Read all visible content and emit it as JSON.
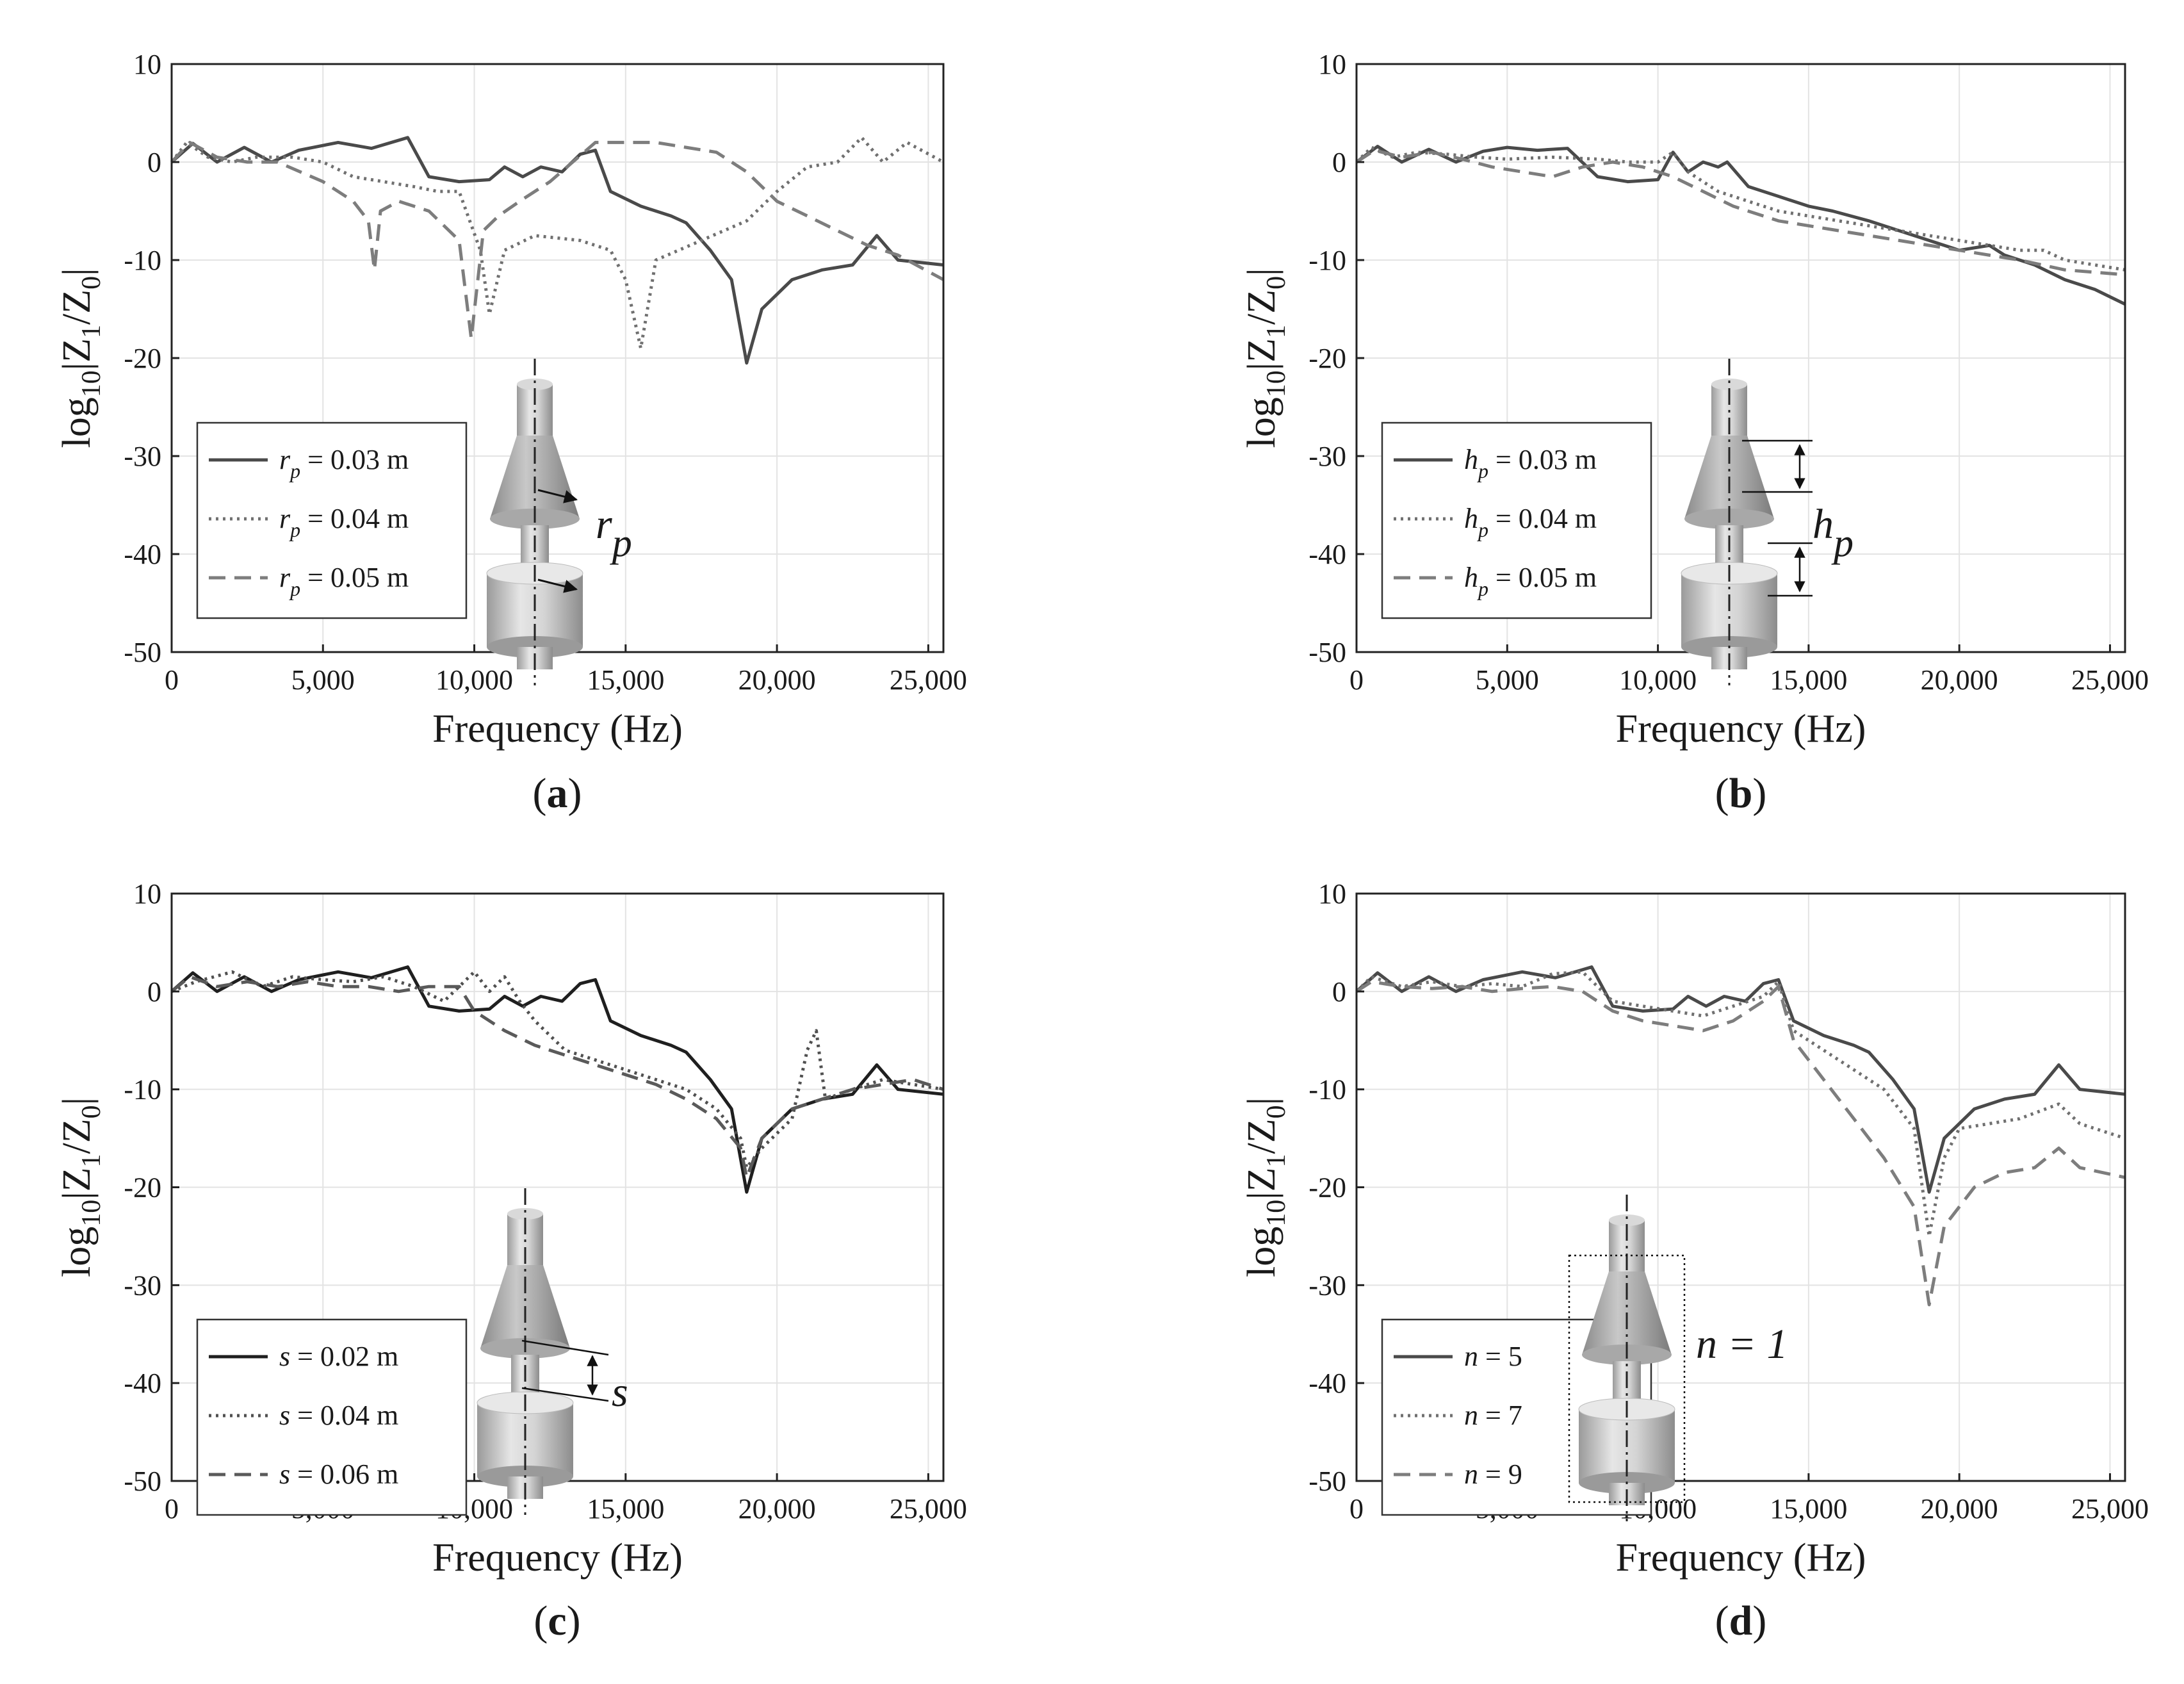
{
  "chart_data": [
    {
      "type": "line",
      "caption": "a",
      "xlabel": "Frequency (Hz)",
      "ylabel": "log10|Z1/Z0|",
      "xlim": [
        0,
        25500
      ],
      "ylim": [
        -50,
        10
      ],
      "xticks": [
        0,
        5000,
        10000,
        15000,
        20000,
        25000
      ],
      "xtick_labels": [
        "0",
        "5,000",
        "10,000",
        "15,000",
        "20,000",
        "25,000"
      ],
      "yticks": [
        10,
        0,
        -10,
        -20,
        -30,
        -40,
        -50
      ],
      "ytick_labels": [
        "10",
        "0",
        "-10",
        "-20",
        "-30",
        "-40",
        "-50"
      ],
      "grid": true,
      "legend_position": "bottom-left",
      "series": [
        {
          "name": "r_p = 0.03 m",
          "param": "r",
          "sub": "p",
          "value_text": " = 0.03 m",
          "style": "solid",
          "color": "#4a4a4a",
          "x": [
            0,
            700,
            1500,
            2400,
            3300,
            4200,
            5500,
            6600,
            7800,
            8500,
            9500,
            10500,
            11000,
            11600,
            12200,
            12900,
            13500,
            14000,
            14500,
            15500,
            16500,
            17000,
            17800,
            18500,
            19000,
            19500,
            20500,
            21500,
            22500,
            23300,
            24000,
            25500
          ],
          "y": [
            0,
            1.9,
            0,
            1.5,
            0,
            1.2,
            2.0,
            1.4,
            2.5,
            -1.5,
            -2,
            -1.8,
            -0.5,
            -1.5,
            -0.5,
            -1,
            0.8,
            1.2,
            -3,
            -4.5,
            -5.5,
            -6.2,
            -9,
            -12,
            -20.5,
            -15,
            -12,
            -11,
            -10.5,
            -7.5,
            -10,
            -10.5
          ]
        },
        {
          "name": "r_p = 0.04 m",
          "param": "r",
          "sub": "p",
          "value_text": " = 0.04 m",
          "style": "dotted",
          "color": "#707070",
          "x": [
            0,
            500,
            1200,
            2000,
            2800,
            4000,
            5000,
            6000,
            7000,
            8000,
            8800,
            9500,
            10200,
            10500,
            11000,
            12000,
            13500,
            14500,
            15000,
            15500,
            16000,
            17500,
            19000,
            20000,
            21000,
            22000,
            22800,
            23500,
            24300,
            25500
          ],
          "y": [
            0,
            2,
            0.5,
            0,
            0.5,
            0.5,
            0,
            -1.5,
            -2,
            -2.5,
            -3,
            -3,
            -9,
            -15.5,
            -9,
            -7.5,
            -8,
            -9,
            -12,
            -19,
            -10,
            -8,
            -6,
            -3,
            -0.5,
            0,
            2.5,
            0,
            2.0,
            0
          ]
        },
        {
          "name": "r_p = 0.05 m",
          "param": "r",
          "sub": "p",
          "value_text": " = 0.05 m",
          "style": "dashed",
          "color": "#7d7d7d",
          "x": [
            0,
            600,
            1500,
            2500,
            3500,
            5000,
            6000,
            6500,
            6700,
            6900,
            7500,
            8500,
            9500,
            9900,
            10300,
            10800,
            11500,
            12500,
            14000,
            15000,
            16000,
            17000,
            18000,
            19000,
            20000,
            21000,
            22000,
            23000,
            24000,
            25500
          ],
          "y": [
            0,
            2,
            0.5,
            0,
            0,
            -2,
            -4,
            -6,
            -11,
            -5,
            -4,
            -5,
            -8,
            -18,
            -7,
            -5.5,
            -4,
            -2,
            2,
            2,
            2,
            1.5,
            1.0,
            -1,
            -4,
            -5.5,
            -7,
            -8.5,
            -9.5,
            -12
          ]
        }
      ],
      "inset": {
        "label": "r",
        "label_sub": "p"
      }
    },
    {
      "type": "line",
      "caption": "b",
      "xlabel": "Frequency (Hz)",
      "ylabel": "log10|Z1/Z0|",
      "xlim": [
        0,
        25500
      ],
      "ylim": [
        -50,
        10
      ],
      "xticks": [
        0,
        5000,
        10000,
        15000,
        20000,
        25000
      ],
      "xtick_labels": [
        "0",
        "5,000",
        "10,000",
        "15,000",
        "20,000",
        "25,000"
      ],
      "yticks": [
        10,
        0,
        -10,
        -20,
        -30,
        -40,
        -50
      ],
      "ytick_labels": [
        "10",
        "0",
        "-10",
        "-20",
        "-30",
        "-40",
        "-50"
      ],
      "grid": true,
      "legend_position": "bottom-left",
      "series": [
        {
          "name": "h_p = 0.03 m",
          "param": "h",
          "sub": "p",
          "value_text": " = 0.03 m",
          "style": "solid",
          "color": "#4a4a4a",
          "x": [
            0,
            700,
            1500,
            2400,
            3300,
            4200,
            5000,
            6000,
            7000,
            8000,
            9000,
            10000,
            10500,
            11000,
            11500,
            12000,
            12300,
            13000,
            14000,
            15000,
            15800,
            17000,
            18000,
            19000,
            20000,
            21000,
            21500,
            22500,
            23500,
            24500,
            25500
          ],
          "y": [
            0,
            1.6,
            0,
            1.3,
            0,
            1.1,
            1.5,
            1.2,
            1.4,
            -1.5,
            -2,
            -1.8,
            1,
            -1,
            0,
            -0.5,
            0,
            -2.5,
            -3.5,
            -4.5,
            -5,
            -6,
            -7,
            -8,
            -9,
            -8.5,
            -9.5,
            -10.5,
            -12,
            -13,
            -14.5
          ]
        },
        {
          "name": "h_p = 0.04 m",
          "param": "h",
          "sub": "p",
          "value_text": " = 0.04 m",
          "style": "dotted",
          "color": "#707070",
          "x": [
            0,
            500,
            1200,
            2000,
            3000,
            4000,
            5000,
            6500,
            8000,
            9000,
            10000,
            10500,
            11000,
            12000,
            14000,
            16000,
            18000,
            20000,
            22000,
            22800,
            23500,
            25500
          ],
          "y": [
            0,
            1.5,
            0.5,
            1,
            0.8,
            0.5,
            0.3,
            0.5,
            0.3,
            0,
            0,
            1,
            -1,
            -3,
            -5,
            -6,
            -7,
            -8,
            -9,
            -9,
            -10,
            -11
          ]
        },
        {
          "name": "h_p = 0.05 m",
          "param": "h",
          "sub": "p",
          "value_text": " = 0.05 m",
          "style": "dashed",
          "color": "#7d7d7d",
          "x": [
            0,
            600,
            1500,
            2500,
            3500,
            4500,
            5500,
            6500,
            7500,
            8500,
            9500,
            10500,
            11500,
            12500,
            14000,
            16000,
            18000,
            20000,
            22000,
            23500,
            25500
          ],
          "y": [
            0,
            1.2,
            0.5,
            1,
            0.3,
            -0.5,
            -1,
            -1.5,
            -0.5,
            0,
            -0.5,
            -1.5,
            -3,
            -4.5,
            -6,
            -7,
            -8,
            -9,
            -10,
            -11,
            -11.5
          ]
        }
      ],
      "inset": {
        "label": "h",
        "label_sub": "p"
      }
    },
    {
      "type": "line",
      "caption": "c",
      "xlabel": "Frequency (Hz)",
      "ylabel": "log10|Z1/Z0|",
      "xlim": [
        0,
        25500
      ],
      "ylim": [
        -50,
        10
      ],
      "xticks": [
        0,
        5000,
        10000,
        15000,
        20000,
        25000
      ],
      "xtick_labels": [
        "0",
        "5,000",
        "10,000",
        "15,000",
        "20,000",
        "25,000"
      ],
      "yticks": [
        10,
        0,
        -10,
        -20,
        -30,
        -40,
        -50
      ],
      "ytick_labels": [
        "10",
        "0",
        "-10",
        "-20",
        "-30",
        "-40",
        "-50"
      ],
      "grid": true,
      "legend_position": "bottom-left",
      "series": [
        {
          "name": "s = 0.02 m",
          "param": "s",
          "sub": "",
          "value_text": " = 0.02 m",
          "style": "solid",
          "color": "#1f1f1f",
          "x": [
            0,
            700,
            1500,
            2400,
            3300,
            4200,
            5500,
            6600,
            7800,
            8500,
            9500,
            10500,
            11000,
            11600,
            12200,
            12900,
            13500,
            14000,
            14500,
            15500,
            16500,
            17000,
            17800,
            18500,
            19000,
            19500,
            20500,
            21500,
            22500,
            23300,
            24000,
            25500
          ],
          "y": [
            0,
            1.9,
            0,
            1.5,
            0,
            1.2,
            2.0,
            1.4,
            2.5,
            -1.5,
            -2,
            -1.8,
            -0.5,
            -1.5,
            -0.5,
            -1,
            0.8,
            1.2,
            -3,
            -4.5,
            -5.5,
            -6.2,
            -9,
            -12,
            -20.5,
            -15,
            -12,
            -11,
            -10.5,
            -7.5,
            -10,
            -10.5
          ]
        },
        {
          "name": "s = 0.04 m",
          "param": "s",
          "sub": "",
          "value_text": " = 0.04 m",
          "style": "dotted",
          "color": "#505050",
          "x": [
            0,
            800,
            2000,
            3000,
            4000,
            5000,
            6000,
            7000,
            8000,
            9000,
            10000,
            10500,
            11000,
            11500,
            12000,
            13000,
            14000,
            15000,
            16000,
            17000,
            18000,
            18800,
            19000,
            19500,
            20500,
            21000,
            21300,
            21600,
            22500,
            23500,
            24500,
            25500
          ],
          "y": [
            0,
            1,
            2,
            0.5,
            1.5,
            1.2,
            1,
            1.5,
            0.5,
            -1,
            2,
            0,
            1.5,
            -1,
            -3,
            -6,
            -7,
            -8,
            -9,
            -10,
            -12,
            -15,
            -18,
            -16,
            -13,
            -6,
            -4,
            -11,
            -10,
            -9,
            -9.5,
            -10
          ]
        },
        {
          "name": "s = 0.06 m",
          "param": "s",
          "sub": "",
          "value_text": " = 0.06 m",
          "style": "dashed",
          "color": "#5a5a5a",
          "x": [
            0,
            600,
            1500,
            2500,
            3500,
            4500,
            5500,
            6500,
            7500,
            8500,
            9500,
            10000,
            11000,
            12000,
            13000,
            14000,
            15000,
            16000,
            17000,
            18000,
            18800,
            19000,
            19500,
            20500,
            21500,
            22500,
            23500,
            24500,
            25500
          ],
          "y": [
            0,
            1.5,
            0.5,
            1,
            0.5,
            1,
            0.5,
            0.5,
            0,
            0.5,
            0.5,
            -2,
            -4,
            -5.5,
            -6.5,
            -7.5,
            -8.5,
            -9.5,
            -11,
            -13,
            -16,
            -19,
            -15,
            -12,
            -11,
            -10,
            -9.5,
            -9,
            -10
          ]
        }
      ],
      "inset": {
        "label": "s",
        "label_sub": ""
      }
    },
    {
      "type": "line",
      "caption": "d",
      "xlabel": "Frequency (Hz)",
      "ylabel": "log10|Z1/Z0|",
      "xlim": [
        0,
        25500
      ],
      "ylim": [
        -50,
        10
      ],
      "xticks": [
        0,
        5000,
        10000,
        15000,
        20000,
        25000
      ],
      "xtick_labels": [
        "0",
        "5,000",
        "10,000",
        "15,000",
        "20,000",
        "25,000"
      ],
      "yticks": [
        10,
        0,
        -10,
        -20,
        -30,
        -40,
        -50
      ],
      "ytick_labels": [
        "10",
        "0",
        "-10",
        "-20",
        "-30",
        "-40",
        "-50"
      ],
      "grid": true,
      "legend_position": "bottom-left",
      "series": [
        {
          "name": "n = 5",
          "param": "n",
          "sub": "",
          "value_text": " = 5",
          "style": "solid",
          "color": "#4a4a4a",
          "x": [
            0,
            700,
            1500,
            2400,
            3300,
            4200,
            5500,
            6600,
            7800,
            8500,
            9500,
            10500,
            11000,
            11600,
            12200,
            12900,
            13500,
            14000,
            14500,
            15500,
            16500,
            17000,
            17800,
            18500,
            19000,
            19500,
            20500,
            21500,
            22500,
            23300,
            24000,
            25500
          ],
          "y": [
            0,
            1.9,
            0,
            1.5,
            0,
            1.2,
            2.0,
            1.4,
            2.5,
            -1.5,
            -2,
            -1.8,
            -0.5,
            -1.5,
            -0.5,
            -1,
            0.8,
            1.2,
            -3,
            -4.5,
            -5.5,
            -6.2,
            -9,
            -12,
            -20.5,
            -15,
            -12,
            -11,
            -10.5,
            -7.5,
            -10,
            -10.5
          ]
        },
        {
          "name": "n = 7",
          "param": "n",
          "sub": "",
          "value_text": " = 7",
          "style": "dotted",
          "color": "#707070",
          "x": [
            0,
            500,
            1500,
            2500,
            3500,
            4500,
            5500,
            6500,
            7500,
            8500,
            9500,
            10500,
            11500,
            12500,
            13500,
            14000,
            14500,
            15500,
            16500,
            17500,
            18500,
            19000,
            19500,
            20000,
            21000,
            22000,
            23300,
            24000,
            25500
          ],
          "y": [
            0,
            1.5,
            0.5,
            1,
            0.5,
            0.8,
            0.5,
            1.8,
            2,
            -1,
            -1.5,
            -2,
            -2.5,
            -1.5,
            -0.5,
            1,
            -4,
            -6,
            -8,
            -10,
            -14,
            -25,
            -17,
            -14,
            -13.5,
            -13,
            -11.5,
            -13.5,
            -15
          ]
        },
        {
          "name": "n = 9",
          "param": "n",
          "sub": "",
          "value_text": " = 9",
          "style": "dashed",
          "color": "#7d7d7d",
          "x": [
            0,
            500,
            1500,
            2500,
            3500,
            4500,
            5500,
            6500,
            7500,
            8500,
            9500,
            10500,
            11500,
            12500,
            13500,
            14000,
            14500,
            15500,
            16500,
            17500,
            18500,
            19000,
            19500,
            20500,
            21500,
            22500,
            23300,
            24000,
            25500
          ],
          "y": [
            0,
            1,
            0.5,
            0.3,
            0.5,
            0,
            0.3,
            0.5,
            0,
            -2,
            -3,
            -3.5,
            -4,
            -3,
            -1,
            0.5,
            -5,
            -9,
            -13,
            -17,
            -22,
            -32,
            -24,
            -20,
            -18.5,
            -18,
            -16,
            -18,
            -19
          ]
        }
      ],
      "inset": {
        "label": "n = 1",
        "label_sub": ""
      }
    }
  ]
}
